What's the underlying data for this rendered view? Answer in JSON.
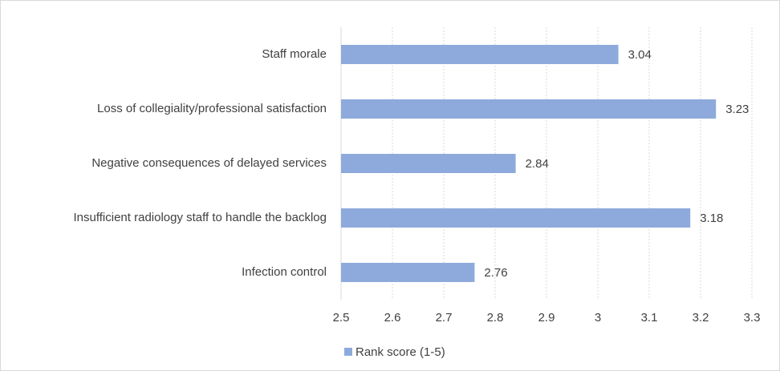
{
  "chart_data": {
    "type": "barh",
    "categories": [
      "Staff morale",
      "Loss of collegiality/professional satisfaction",
      "Negative consequences of delayed services",
      "Insufficient radiology staff to handle the backlog",
      "Infection control"
    ],
    "series": [
      {
        "name": "Rank score (1-5)",
        "color": "#8eaadc",
        "values": [
          3.04,
          3.23,
          2.84,
          3.18,
          2.76
        ]
      }
    ],
    "xlim": [
      2.5,
      3.3
    ],
    "xticks": [
      2.5,
      2.6,
      2.7,
      2.8,
      2.9,
      3,
      3.1,
      3.2,
      3.3
    ],
    "grid": true,
    "legend": "bottom"
  }
}
